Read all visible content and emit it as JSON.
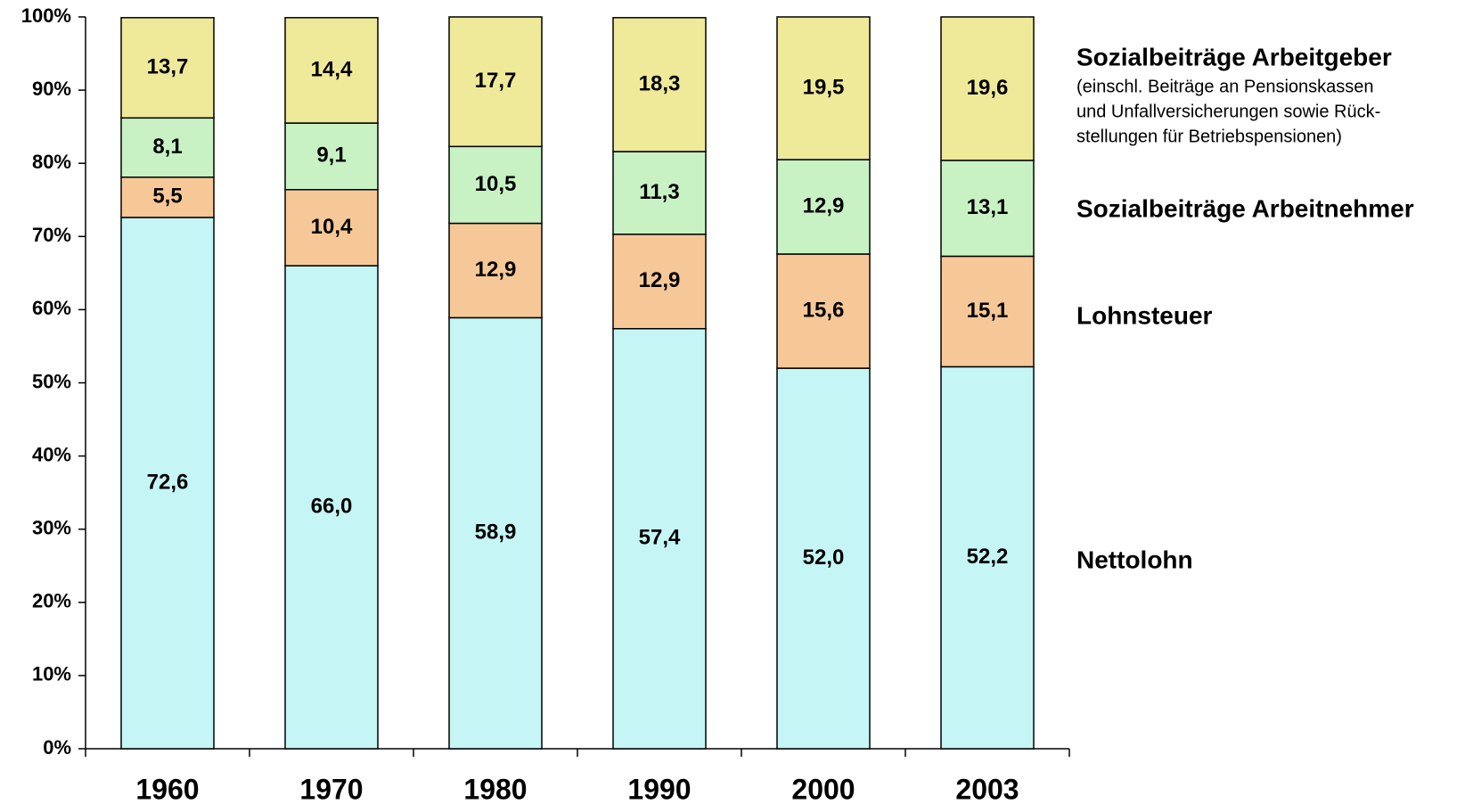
{
  "chart_data": {
    "type": "stacked_bar",
    "categories": [
      "1960",
      "1970",
      "1980",
      "1990",
      "2000",
      "2003"
    ],
    "series": [
      {
        "name": "Nettolohn",
        "color": "#c6f5f5",
        "values": [
          72.6,
          66.0,
          58.9,
          57.4,
          52.0,
          52.2
        ],
        "value_labels": [
          "72,6",
          "66,0",
          "58,9",
          "57,4",
          "52,0",
          "52,2"
        ]
      },
      {
        "name": "Lohnsteuer",
        "color": "#f6c898",
        "values": [
          5.5,
          10.4,
          12.9,
          12.9,
          15.6,
          15.1
        ],
        "value_labels": [
          "5,5",
          "10,4",
          "12,9",
          "12,9",
          "15,6",
          "15,1"
        ]
      },
      {
        "name": "Sozialbeiträge Arbeitnehmer",
        "color": "#c8f2c4",
        "values": [
          8.1,
          9.1,
          10.5,
          11.3,
          12.9,
          13.1
        ],
        "value_labels": [
          "8,1",
          "9,1",
          "10,5",
          "11,3",
          "12,9",
          "13,1"
        ]
      },
      {
        "name": "Sozialbeiträge Arbeitgeber",
        "color": "#efe99a",
        "values": [
          13.7,
          14.4,
          17.7,
          18.3,
          19.5,
          19.6
        ],
        "value_labels": [
          "13,7",
          "14,4",
          "17,7",
          "18,3",
          "19,5",
          "19,6"
        ]
      }
    ],
    "legend_note": [
      "(einschl. Beiträge an Pensionskassen",
      "und Unfallversicherungen sowie Rück-",
      "stellungen für Betriebspensionen)"
    ],
    "ylim": [
      0,
      100
    ],
    "yticks": [
      {
        "value": 0,
        "label": "0%"
      },
      {
        "value": 10,
        "label": "10%"
      },
      {
        "value": 20,
        "label": "20%"
      },
      {
        "value": 30,
        "label": "30%"
      },
      {
        "value": 40,
        "label": "40%"
      },
      {
        "value": 50,
        "label": "50%"
      },
      {
        "value": 60,
        "label": "60%"
      },
      {
        "value": 70,
        "label": "70%"
      },
      {
        "value": 80,
        "label": "80%"
      },
      {
        "value": 90,
        "label": "90%"
      },
      {
        "value": 100,
        "label": "100%"
      }
    ],
    "grid": false,
    "legend": "right"
  }
}
